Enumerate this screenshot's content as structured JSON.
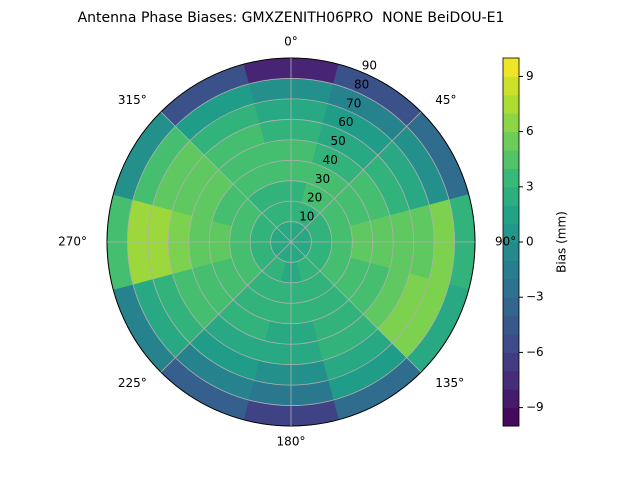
{
  "chart_data": {
    "type": "polar-contour",
    "title": "Antenna Phase Biases: GMXZENITH06PRO  NONE BeiDOU-E1",
    "azimuth": [
      0,
      30,
      60,
      90,
      120,
      150,
      180,
      210,
      240,
      270,
      300,
      330
    ],
    "zenith": [
      5,
      15,
      25,
      35,
      45,
      55,
      65,
      75,
      85
    ],
    "values": [
      [
        2,
        2,
        2,
        2,
        2,
        2,
        2,
        2,
        2,
        2,
        2,
        2
      ],
      [
        3,
        3,
        3,
        3,
        3,
        3,
        2,
        3,
        3,
        3,
        3,
        3
      ],
      [
        3,
        4,
        4,
        4,
        4,
        3,
        3,
        3,
        4,
        4,
        4,
        3
      ],
      [
        4,
        4,
        4,
        5,
        4,
        3,
        3,
        3,
        4,
        5,
        4,
        4
      ],
      [
        4,
        3,
        4,
        5,
        4,
        3,
        2,
        3,
        4,
        5,
        5,
        4
      ],
      [
        3,
        2,
        3,
        5,
        5,
        3,
        2,
        2,
        4,
        6,
        5,
        4
      ],
      [
        2,
        1,
        2,
        5,
        6,
        2,
        0,
        1,
        3,
        7,
        5,
        3
      ],
      [
        0,
        -1,
        0,
        6,
        6,
        1,
        -2,
        -1,
        2,
        7,
        4,
        1
      ],
      [
        -8,
        -5,
        -3,
        3,
        2,
        -3,
        -6,
        -4,
        -1,
        4,
        0,
        -5
      ]
    ],
    "xticks": [
      {
        "value": 0,
        "label": "0°"
      },
      {
        "value": 45,
        "label": "45°"
      },
      {
        "value": 90,
        "label": "90°"
      },
      {
        "value": 135,
        "label": "135°"
      },
      {
        "value": 180,
        "label": "180°"
      },
      {
        "value": 225,
        "label": "225°"
      },
      {
        "value": 270,
        "label": "270°"
      },
      {
        "value": 315,
        "label": "315°"
      }
    ],
    "ylim": [
      0,
      90
    ],
    "yticks": [
      10,
      20,
      30,
      40,
      50,
      60,
      70,
      80,
      90
    ],
    "grid": true,
    "colorbar": {
      "label": "Bias (mm)",
      "clim": [
        -10,
        10
      ],
      "ticks": [
        {
          "value": -9,
          "label": "−9"
        },
        {
          "value": -6,
          "label": "−6"
        },
        {
          "value": -3,
          "label": "−3"
        },
        0,
        3,
        6,
        9
      ]
    }
  }
}
